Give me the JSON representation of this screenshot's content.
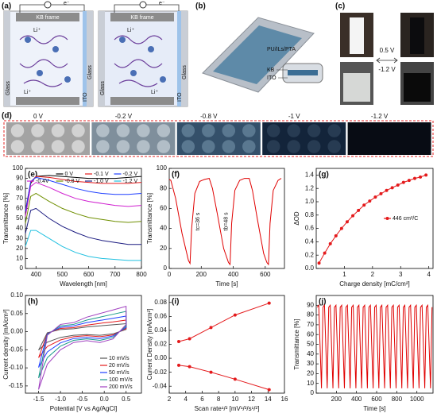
{
  "panels": {
    "a": {
      "label": "(a)",
      "frame": "KB frame",
      "ion": "Li⁺",
      "electron": "e⁻",
      "glass": "Glass",
      "ito": "ITO"
    },
    "b": {
      "label": "(b)",
      "layer": "PU/ILs/PTA",
      "kb": "KB",
      "ito": "ITO"
    },
    "c": {
      "label": "(c)",
      "high": "0.5 V",
      "low": "-1.2 V"
    },
    "d": {
      "label": "(d)",
      "voltages": [
        "0 V",
        "-0.2 V",
        "-0.8 V",
        "-1 V",
        "-1.2 V"
      ]
    }
  },
  "chart_data": [
    {
      "type": "line",
      "label": "(e)",
      "xlabel": "Wavelength [nm]",
      "ylabel": "Transmittance [%]",
      "x": [
        360,
        380,
        400,
        450,
        500,
        550,
        600,
        650,
        700,
        750,
        800
      ],
      "series": [
        {
          "name": "0 V",
          "color": "#000000",
          "values": [
            55,
            85,
            92,
            93,
            92,
            91,
            90,
            90,
            90,
            91,
            92
          ]
        },
        {
          "name": "-0.1 V",
          "color": "#e41a1c",
          "values": [
            58,
            86,
            92,
            91,
            89,
            87,
            86,
            85,
            85,
            85,
            86
          ]
        },
        {
          "name": "-0.2 V",
          "color": "#1f3fff",
          "values": [
            57,
            87,
            91,
            88,
            84,
            80,
            77,
            75,
            74,
            74,
            75
          ]
        },
        {
          "name": "-0.4V",
          "color": "#d020d0",
          "values": [
            52,
            82,
            86,
            81,
            75,
            70,
            67,
            65,
            63,
            62,
            63
          ]
        },
        {
          "name": "-0.8 V",
          "color": "#6f8f00",
          "values": [
            45,
            72,
            75,
            67,
            60,
            55,
            51,
            49,
            47,
            46,
            47
          ]
        },
        {
          "name": "-1.0 V",
          "color": "#1a1a80",
          "values": [
            35,
            58,
            60,
            50,
            42,
            36,
            31,
            28,
            26,
            24,
            24
          ]
        },
        {
          "name": "-1.2 V",
          "color": "#20c0e0",
          "values": [
            22,
            38,
            38,
            30,
            22,
            16,
            12,
            10,
            9,
            8,
            8
          ]
        }
      ],
      "xlim": [
        360,
        800
      ],
      "xticks": [
        400,
        500,
        600,
        700,
        800
      ],
      "ylim": [
        0,
        100
      ],
      "yticks": [
        0,
        10,
        20,
        30,
        40,
        50,
        60,
        70,
        80,
        90,
        100
      ],
      "legend": "top"
    },
    {
      "type": "line",
      "label": "(f)",
      "xlabel": "Time [s]",
      "ylabel": "Transmittance [%]",
      "annotations": [
        "tc=36 s",
        "tb=48 s"
      ],
      "x": [
        0,
        10,
        40,
        80,
        120,
        130,
        140,
        160,
        190,
        220,
        250,
        270,
        300,
        340,
        370,
        380,
        390,
        410,
        440,
        470,
        500,
        520,
        550,
        590,
        610,
        620,
        630,
        650,
        680,
        700
      ],
      "series": [
        {
          "color": "#e00000",
          "values": [
            89,
            88,
            70,
            35,
            8,
            5,
            40,
            75,
            87,
            89,
            90,
            80,
            55,
            20,
            6,
            4,
            45,
            78,
            88,
            90,
            90,
            78,
            50,
            15,
            6,
            4,
            45,
            78,
            88,
            90
          ]
        }
      ],
      "xlim": [
        0,
        720
      ],
      "xticks": [
        0,
        200,
        400,
        600
      ],
      "ylim": [
        0,
        100
      ],
      "yticks": [
        0,
        20,
        40,
        60,
        80,
        100
      ]
    },
    {
      "type": "line",
      "label": "(g)",
      "xlabel": "Charge density [mC/cm²]",
      "ylabel": "ΔOD",
      "markers": true,
      "x": [
        0.1,
        0.3,
        0.5,
        0.7,
        0.9,
        1.1,
        1.3,
        1.5,
        1.7,
        1.9,
        2.1,
        2.3,
        2.5,
        2.7,
        2.9,
        3.1,
        3.3,
        3.5,
        3.7,
        3.9
      ],
      "series": [
        {
          "name": "446 cm²/C",
          "color": "#e41a1c",
          "values": [
            0.08,
            0.23,
            0.37,
            0.49,
            0.6,
            0.7,
            0.79,
            0.87,
            0.95,
            1.01,
            1.07,
            1.12,
            1.17,
            1.21,
            1.25,
            1.29,
            1.32,
            1.35,
            1.37,
            1.4
          ]
        }
      ],
      "xlim": [
        0,
        4.15
      ],
      "xticks": [
        1,
        2,
        3,
        4
      ],
      "ylim": [
        0,
        1.5
      ],
      "yticks": [
        {
          "value": 0,
          "label": "0.0"
        },
        0.2,
        0.4,
        0.6,
        0.8,
        {
          "value": 1,
          "label": "1.0"
        },
        1.2,
        1.4
      ],
      "legend": "right"
    },
    {
      "type": "line",
      "label": "(h)",
      "xlabel": "Potential [V vs Ag/AgCl]",
      "ylabel": "Current density [mA/cm²]",
      "x": [
        -1.5,
        -1.3,
        -1.0,
        -0.7,
        -0.4,
        -0.1,
        0.2,
        0.5,
        0.5,
        0.2,
        -0.1,
        -0.4,
        -0.7,
        -1.0,
        -1.3,
        -1.5
      ],
      "series": [
        {
          "name": "10 mV/s",
          "color": "#555555",
          "values": [
            -0.051,
            -0.003,
            0.006,
            0.008,
            0.013,
            0.016,
            0.019,
            0.022,
            0.006,
            -0.006,
            -0.01,
            -0.008,
            -0.01,
            -0.016,
            -0.029,
            -0.051
          ]
        },
        {
          "name": "20 mV/s",
          "color": "#e41a1c",
          "values": [
            -0.072,
            -0.005,
            0.009,
            0.011,
            0.018,
            0.023,
            0.027,
            0.032,
            0.009,
            -0.009,
            -0.014,
            -0.011,
            -0.014,
            -0.023,
            -0.041,
            -0.072
          ]
        },
        {
          "name": "50 mV/s",
          "color": "#1f3fff",
          "values": [
            -0.099,
            -0.006,
            0.012,
            0.016,
            0.025,
            0.031,
            0.037,
            0.043,
            0.012,
            -0.012,
            -0.019,
            -0.016,
            -0.019,
            -0.031,
            -0.056,
            -0.099
          ]
        },
        {
          "name": "100 mV/s",
          "color": "#1a9a8a",
          "values": [
            -0.128,
            -0.008,
            0.016,
            0.02,
            0.032,
            0.04,
            0.048,
            0.056,
            0.016,
            -0.016,
            -0.024,
            -0.02,
            -0.024,
            -0.04,
            -0.072,
            -0.128
          ]
        },
        {
          "name": "200 mV/s",
          "color": "#a040c0",
          "values": [
            -0.16,
            -0.01,
            0.02,
            0.025,
            0.04,
            0.05,
            0.06,
            0.07,
            0.02,
            -0.02,
            -0.03,
            -0.025,
            -0.03,
            -0.05,
            -0.09,
            -0.16
          ]
        }
      ],
      "xlim": [
        -1.8,
        0.85
      ],
      "xticks": [
        -1.5,
        {
          "value": -1,
          "label": "-1.0"
        },
        -0.5,
        {
          "value": 0,
          "label": "0.0"
        },
        0.5
      ],
      "ylim": [
        -0.17,
        0.1
      ],
      "yticks": [
        -0.15,
        {
          "value": -0.1,
          "label": "-0.10"
        },
        -0.05,
        {
          "value": 0,
          "label": "0.00"
        },
        0.05,
        {
          "value": 0.1,
          "label": "0.10"
        }
      ],
      "legend": "lower right"
    },
    {
      "type": "line",
      "label": "(i)",
      "xlabel": "Scan rate¹/² [mV¹/²/s¹/²]",
      "ylabel": "Current Density [mA/cm²]",
      "markers": true,
      "x": [
        3.16,
        4.47,
        7.07,
        10,
        14.14
      ],
      "series": [
        {
          "color": "#e41a1c",
          "values": [
            0.024,
            0.028,
            0.044,
            0.062,
            0.079
          ]
        },
        {
          "color": "#e41a1c",
          "values": [
            -0.01,
            -0.012,
            -0.02,
            -0.03,
            -0.045
          ]
        }
      ],
      "xlim": [
        2,
        16
      ],
      "xticks": [
        2,
        4,
        6,
        8,
        10,
        12,
        14,
        16
      ],
      "ylim": [
        -0.05,
        0.09
      ],
      "yticks": [
        -0.04,
        -0.02,
        {
          "value": 0,
          "label": "0.00"
        },
        0.02,
        0.04,
        0.06,
        0.08
      ]
    },
    {
      "type": "line",
      "label": "(j)",
      "xlabel": "Time [s]",
      "ylabel": "Transmittance [%]",
      "x": [
        10,
        25,
        52,
        67,
        82,
        109,
        124,
        139,
        166,
        181,
        196,
        223,
        238,
        253,
        280,
        295,
        310,
        337,
        352,
        367,
        394,
        409,
        424,
        451,
        466,
        481,
        508,
        523,
        538,
        565,
        580,
        595,
        622,
        637,
        652,
        679,
        694,
        709,
        736,
        751,
        766,
        793,
        808,
        823,
        850,
        865,
        880,
        907,
        922,
        937,
        964,
        979,
        994,
        1021,
        1036,
        1051,
        1078,
        1093,
        1108,
        1135,
        1150
      ],
      "series": [
        {
          "color": "#e00000",
          "values": [
            88,
            90,
            5,
            88,
            90,
            5,
            88,
            90,
            5,
            88,
            90,
            5,
            88,
            90,
            5,
            88,
            90,
            5,
            88,
            90,
            5,
            88,
            90,
            5,
            88,
            90,
            5,
            88,
            90,
            5,
            88,
            90,
            5,
            88,
            90,
            5,
            88,
            90,
            5,
            88,
            90,
            5,
            88,
            90,
            5,
            88,
            90,
            5,
            88,
            90,
            5,
            88,
            90,
            5,
            88,
            90,
            5,
            88,
            90,
            5,
            88
          ]
        }
      ],
      "xlim": [
        0,
        1160
      ],
      "xticks": [
        200,
        400,
        600,
        800,
        1000
      ],
      "ylim": [
        0,
        100
      ],
      "yticks": [
        0,
        10,
        20,
        30,
        40,
        50,
        60,
        70,
        80,
        90
      ]
    }
  ]
}
